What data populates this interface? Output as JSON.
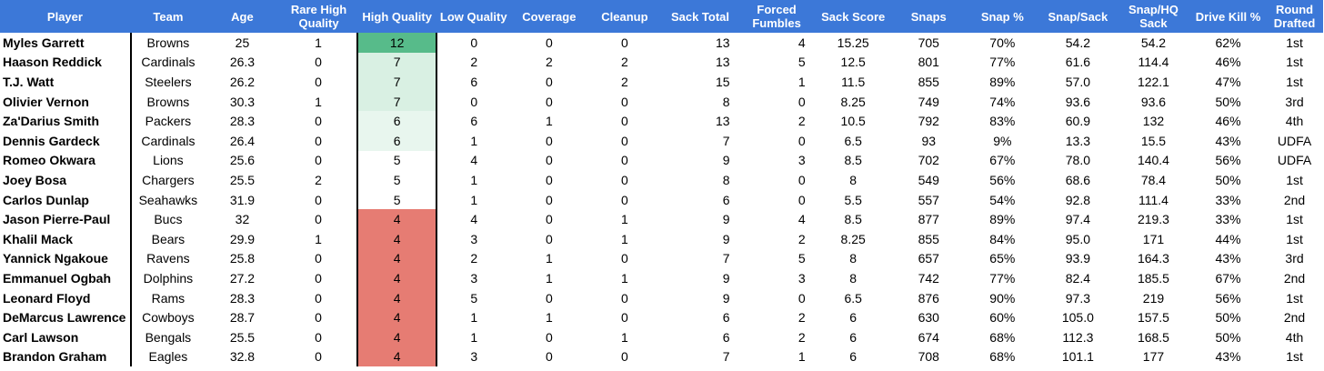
{
  "colors": {
    "header_bg": "#3c78d8",
    "header_text": "#ffffff",
    "hq_12": "#57bb8a",
    "hq_7": "#d9f0e3",
    "hq_6": "#e8f6ee",
    "hq_5": "#ffffff",
    "hq_4": "#e67c73"
  },
  "table": {
    "headers": [
      "Player",
      "Team",
      "Age",
      "Rare High Quality",
      "High Quality",
      "Low Quality",
      "Coverage",
      "Cleanup",
      "Sack Total",
      "Forced Fumbles",
      "Sack Score",
      "Snaps",
      "Snap %",
      "Snap/Sack",
      "Snap/HQ Sack",
      "Drive Kill %",
      "Round Drafted"
    ],
    "rows": [
      [
        "Myles Garrett",
        "Browns",
        "25",
        "1",
        "12",
        "0",
        "0",
        "0",
        "13",
        "4",
        "15.25",
        "705",
        "70%",
        "54.2",
        "54.2",
        "62%",
        "1st"
      ],
      [
        "Haason Reddick",
        "Cardinals",
        "26.3",
        "0",
        "7",
        "2",
        "2",
        "2",
        "13",
        "5",
        "12.5",
        "801",
        "77%",
        "61.6",
        "114.4",
        "46%",
        "1st"
      ],
      [
        "T.J. Watt",
        "Steelers",
        "26.2",
        "0",
        "7",
        "6",
        "0",
        "2",
        "15",
        "1",
        "11.5",
        "855",
        "89%",
        "57.0",
        "122.1",
        "47%",
        "1st"
      ],
      [
        "Olivier Vernon",
        "Browns",
        "30.3",
        "1",
        "7",
        "0",
        "0",
        "0",
        "8",
        "0",
        "8.25",
        "749",
        "74%",
        "93.6",
        "93.6",
        "50%",
        "3rd"
      ],
      [
        "Za'Darius Smith",
        "Packers",
        "28.3",
        "0",
        "6",
        "6",
        "1",
        "0",
        "13",
        "2",
        "10.5",
        "792",
        "83%",
        "60.9",
        "132",
        "46%",
        "4th"
      ],
      [
        "Dennis Gardeck",
        "Cardinals",
        "26.4",
        "0",
        "6",
        "1",
        "0",
        "0",
        "7",
        "0",
        "6.5",
        "93",
        "9%",
        "13.3",
        "15.5",
        "43%",
        "UDFA"
      ],
      [
        "Romeo Okwara",
        "Lions",
        "25.6",
        "0",
        "5",
        "4",
        "0",
        "0",
        "9",
        "3",
        "8.5",
        "702",
        "67%",
        "78.0",
        "140.4",
        "56%",
        "UDFA"
      ],
      [
        "Joey Bosa",
        "Chargers",
        "25.5",
        "2",
        "5",
        "1",
        "0",
        "0",
        "8",
        "0",
        "8",
        "549",
        "56%",
        "68.6",
        "78.4",
        "50%",
        "1st"
      ],
      [
        "Carlos Dunlap",
        "Seahawks",
        "31.9",
        "0",
        "5",
        "1",
        "0",
        "0",
        "6",
        "0",
        "5.5",
        "557",
        "54%",
        "92.8",
        "111.4",
        "33%",
        "2nd"
      ],
      [
        "Jason Pierre-Paul",
        "Bucs",
        "32",
        "0",
        "4",
        "4",
        "0",
        "1",
        "9",
        "4",
        "8.5",
        "877",
        "89%",
        "97.4",
        "219.3",
        "33%",
        "1st"
      ],
      [
        "Khalil Mack",
        "Bears",
        "29.9",
        "1",
        "4",
        "3",
        "0",
        "1",
        "9",
        "2",
        "8.25",
        "855",
        "84%",
        "95.0",
        "171",
        "44%",
        "1st"
      ],
      [
        "Yannick Ngakoue",
        "Ravens",
        "25.8",
        "0",
        "4",
        "2",
        "1",
        "0",
        "7",
        "5",
        "8",
        "657",
        "65%",
        "93.9",
        "164.3",
        "43%",
        "3rd"
      ],
      [
        "Emmanuel Ogbah",
        "Dolphins",
        "27.2",
        "0",
        "4",
        "3",
        "1",
        "1",
        "9",
        "3",
        "8",
        "742",
        "77%",
        "82.4",
        "185.5",
        "67%",
        "2nd"
      ],
      [
        "Leonard Floyd",
        "Rams",
        "28.3",
        "0",
        "4",
        "5",
        "0",
        "0",
        "9",
        "0",
        "6.5",
        "876",
        "90%",
        "97.3",
        "219",
        "56%",
        "1st"
      ],
      [
        "DeMarcus Lawrence",
        "Cowboys",
        "28.7",
        "0",
        "4",
        "1",
        "1",
        "0",
        "6",
        "2",
        "6",
        "630",
        "60%",
        "105.0",
        "157.5",
        "50%",
        "2nd"
      ],
      [
        "Carl Lawson",
        "Bengals",
        "25.5",
        "0",
        "4",
        "1",
        "0",
        "1",
        "6",
        "2",
        "6",
        "674",
        "68%",
        "112.3",
        "168.5",
        "50%",
        "4th"
      ],
      [
        "Brandon Graham",
        "Eagles",
        "32.8",
        "0",
        "4",
        "3",
        "0",
        "0",
        "7",
        "1",
        "6",
        "708",
        "68%",
        "101.1",
        "177",
        "43%",
        "1st"
      ]
    ]
  }
}
